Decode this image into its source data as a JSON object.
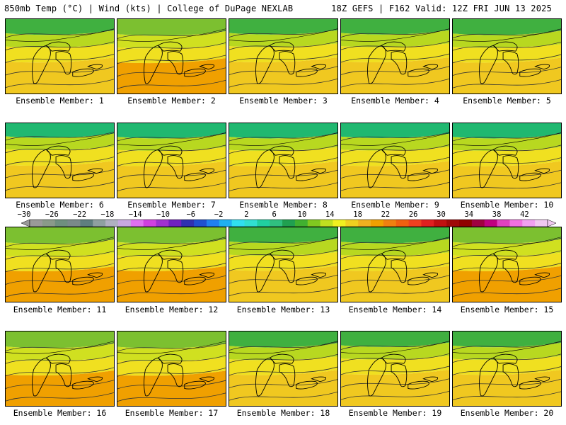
{
  "header": {
    "left_title": "850mb Temp (°C) | Wind (kts) | College of DuPage NEXLAB",
    "right_title": "18Z GEFS | F162 Valid: 12Z FRI JUN 13 2025"
  },
  "members": [
    {
      "label": "Ensemble Member: 1",
      "warmth": 0.55
    },
    {
      "label": "Ensemble Member: 2",
      "warmth": 0.7
    },
    {
      "label": "Ensemble Member: 3",
      "warmth": 0.5
    },
    {
      "label": "Ensemble Member: 4",
      "warmth": 0.5
    },
    {
      "label": "Ensemble Member: 5",
      "warmth": 0.6
    },
    {
      "label": "Ensemble Member: 6",
      "warmth": 0.35
    },
    {
      "label": "Ensemble Member: 7",
      "warmth": 0.45
    },
    {
      "label": "Ensemble Member: 8",
      "warmth": 0.45
    },
    {
      "label": "Ensemble Member: 9",
      "warmth": 0.4
    },
    {
      "label": "Ensemble Member: 10",
      "warmth": 0.45
    },
    {
      "label": "Ensemble Member: 11",
      "warmth": 0.7
    },
    {
      "label": "Ensemble Member: 12",
      "warmth": 0.65
    },
    {
      "label": "Ensemble Member: 13",
      "warmth": 0.55
    },
    {
      "label": "Ensemble Member: 14",
      "warmth": 0.6
    },
    {
      "label": "Ensemble Member: 15",
      "warmth": 0.65
    },
    {
      "label": "Ensemble Member: 16",
      "warmth": 0.7
    },
    {
      "label": "Ensemble Member: 17",
      "warmth": 0.75
    },
    {
      "label": "Ensemble Member: 18",
      "warmth": 0.6
    },
    {
      "label": "Ensemble Member: 19",
      "warmth": 0.5
    },
    {
      "label": "Ensemble Member: 20",
      "warmth": 0.55
    }
  ],
  "colorbar": {
    "tick_labels": [
      "−30",
      "−26",
      "−22",
      "−18",
      "−14",
      "−10",
      "−6",
      "−2",
      "2",
      "6",
      "10",
      "14",
      "18",
      "22",
      "26",
      "30",
      "34",
      "38",
      "42"
    ],
    "colors": [
      "#9a9a9a",
      "#8a9a8a",
      "#6f8f7f",
      "#7a8a8a",
      "#5f7f7f",
      "#8fa0a0",
      "#b0b0c0",
      "#c8a8e0",
      "#e070f0",
      "#d040e0",
      "#a030d0",
      "#7020c0",
      "#3030b0",
      "#2050d0",
      "#2080f0",
      "#20b0f0",
      "#30e0f0",
      "#30e0d0",
      "#20d0a0",
      "#30c080",
      "#20a050",
      "#40b030",
      "#80c820",
      "#c0e020",
      "#f0f020",
      "#f0d020",
      "#f0b020",
      "#f0a000",
      "#f08010",
      "#f06010",
      "#f04020",
      "#e02020",
      "#c01010",
      "#a00808",
      "#900000",
      "#a00040",
      "#c00080",
      "#e040c0",
      "#f070e0",
      "#f0a0f0",
      "#f0c8f0"
    ]
  }
}
